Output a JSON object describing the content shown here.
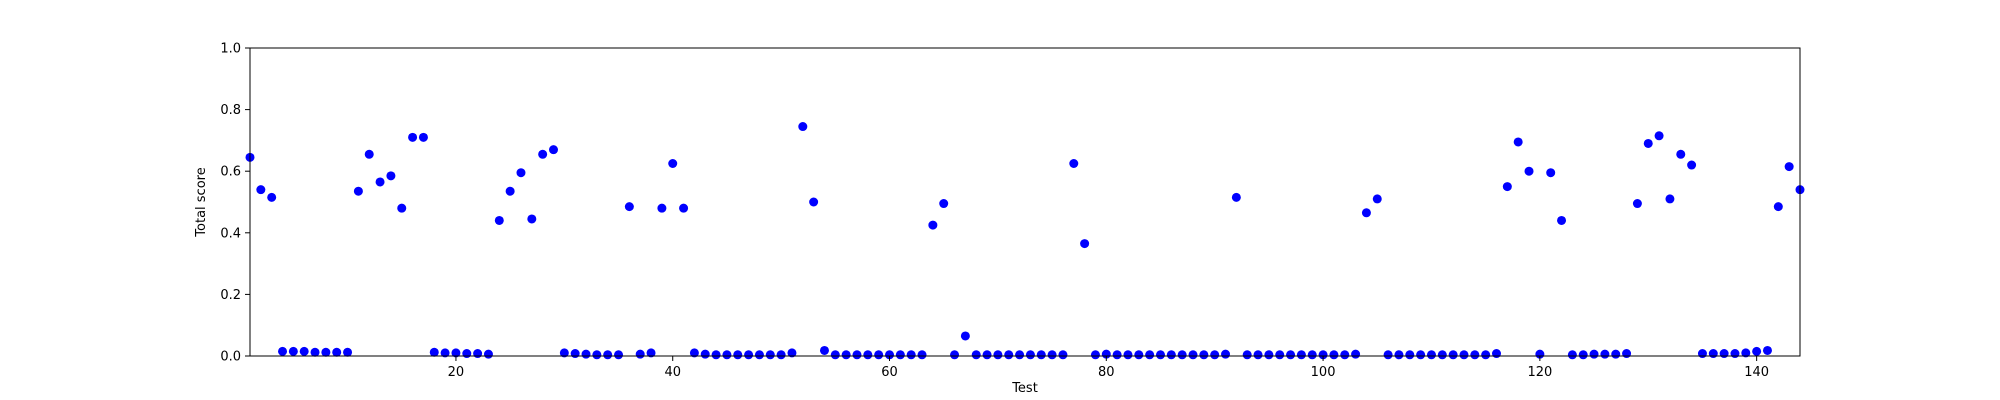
{
  "chart_data": {
    "type": "scatter",
    "title": "",
    "xlabel": "Test",
    "ylabel": "Total score",
    "xlim": [
      1,
      144
    ],
    "ylim": [
      0,
      1.0
    ],
    "xticks": [
      20,
      40,
      60,
      80,
      100,
      120,
      140
    ],
    "yticks": [
      0.0,
      0.2,
      0.4,
      0.6,
      0.8,
      1.0
    ],
    "xtick_labels": [
      "20",
      "40",
      "60",
      "80",
      "100",
      "120",
      "140"
    ],
    "ytick_labels": [
      "0.0",
      "0.2",
      "0.4",
      "0.6",
      "0.8",
      "1.0"
    ],
    "grid": false,
    "marker_color": "#0000ff",
    "x": [
      1,
      2,
      3,
      4,
      5,
      6,
      7,
      8,
      9,
      10,
      11,
      12,
      13,
      14,
      15,
      16,
      17,
      18,
      19,
      20,
      21,
      22,
      23,
      24,
      25,
      26,
      27,
      28,
      29,
      30,
      31,
      32,
      33,
      34,
      35,
      36,
      37,
      38,
      39,
      40,
      41,
      42,
      43,
      44,
      45,
      46,
      47,
      48,
      49,
      50,
      51,
      52,
      53,
      54,
      55,
      56,
      57,
      58,
      59,
      60,
      61,
      62,
      63,
      64,
      65,
      66,
      67,
      68,
      69,
      70,
      71,
      72,
      73,
      74,
      75,
      76,
      77,
      78,
      79,
      80,
      81,
      82,
      83,
      84,
      85,
      86,
      87,
      88,
      89,
      90,
      91,
      92,
      93,
      94,
      95,
      96,
      97,
      98,
      99,
      100,
      101,
      102,
      103,
      104,
      105,
      106,
      107,
      108,
      109,
      110,
      111,
      112,
      113,
      114,
      115,
      116,
      117,
      118,
      119,
      120,
      121,
      122,
      123,
      124,
      125,
      126,
      127,
      128,
      129,
      130,
      131,
      132,
      133,
      134,
      135,
      136,
      137,
      138,
      139,
      140,
      141,
      142,
      143,
      144
    ],
    "y": [
      0.645,
      0.54,
      0.515,
      0.015,
      0.015,
      0.015,
      0.012,
      0.012,
      0.012,
      0.012,
      0.535,
      0.655,
      0.565,
      0.585,
      0.48,
      0.71,
      0.71,
      0.012,
      0.01,
      0.01,
      0.008,
      0.008,
      0.006,
      0.44,
      0.535,
      0.595,
      0.445,
      0.655,
      0.67,
      0.01,
      0.008,
      0.006,
      0.004,
      0.004,
      0.004,
      0.485,
      0.006,
      0.01,
      0.48,
      0.625,
      0.48,
      0.01,
      0.006,
      0.004,
      0.004,
      0.004,
      0.004,
      0.004,
      0.004,
      0.004,
      0.01,
      0.745,
      0.5,
      0.018,
      0.004,
      0.004,
      0.004,
      0.004,
      0.004,
      0.004,
      0.004,
      0.004,
      0.004,
      0.425,
      0.495,
      0.004,
      0.065,
      0.004,
      0.004,
      0.004,
      0.004,
      0.004,
      0.004,
      0.004,
      0.004,
      0.004,
      0.625,
      0.365,
      0.004,
      0.006,
      0.004,
      0.004,
      0.004,
      0.004,
      0.004,
      0.004,
      0.004,
      0.004,
      0.004,
      0.004,
      0.006,
      0.515,
      0.004,
      0.004,
      0.004,
      0.004,
      0.004,
      0.004,
      0.004,
      0.004,
      0.004,
      0.004,
      0.006,
      0.465,
      0.51,
      0.004,
      0.004,
      0.004,
      0.004,
      0.004,
      0.004,
      0.004,
      0.004,
      0.004,
      0.004,
      0.008,
      0.55,
      0.695,
      0.6,
      0.006,
      0.595,
      0.44,
      0.004,
      0.004,
      0.006,
      0.006,
      0.006,
      0.008,
      0.495,
      0.69,
      0.715,
      0.51,
      0.655,
      0.62,
      0.008,
      0.008,
      0.008,
      0.008,
      0.01,
      0.015,
      0.018,
      0.485,
      0.615,
      0.54
    ]
  }
}
